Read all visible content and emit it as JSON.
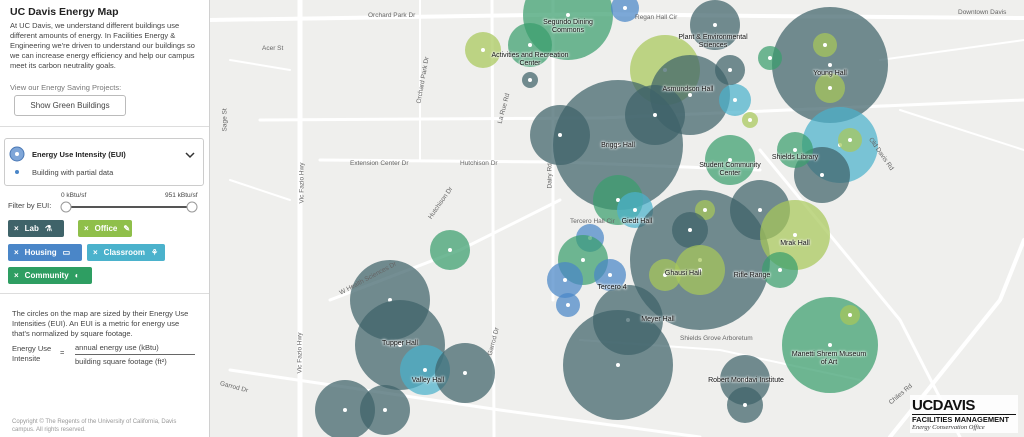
{
  "sidebar": {
    "title": "UC Davis Energy Map",
    "intro": "At UC Davis, we understand different buildings use different amounts of energy. In Facilities Energy & Engineering we're driven to understand our buildings so we can increase energy efficiency and help our campus meet its carbon neutrality goals.",
    "projects_label": "View our Energy Saving Projects:",
    "green_button": "Show Green Buildings",
    "legend": {
      "title": "Energy Use Intensity (EUI)",
      "partial": "Building with partial data"
    },
    "filter": {
      "label": "Filter by EUI:",
      "min": "0 kBtu/sf",
      "max": "951 kBtu/sf",
      "chips": [
        "Lab",
        "Office",
        "Housing",
        "Classroom",
        "Community"
      ]
    },
    "explanation": "The circles on the map are sized by their Energy Use Intensities (EUI). An EUI is a metric for energy use that's normalized by square footage.",
    "formula": {
      "term": "Energy Use Intensite",
      "equals": "=",
      "numerator": "annual energy use (kBtu)",
      "denominator": "building square footage (ft²)"
    },
    "copyright": "Copyright © The Regents of the University of California, Davis campus. All rights reserved."
  },
  "map": {
    "buildings": [
      "Segundo Dining Commons",
      "Plant & Environmental Sciences",
      "Activities and Recreation Center",
      "Young Hall",
      "Asmundson Hall",
      "Briggs Hall",
      "Student Community Center",
      "Shields Library",
      "Giedt Hall",
      "Mrak Hall",
      "Ghausi Hall",
      "Rifle Range",
      "Tercero 4",
      "Meyer Hall",
      "Tupper Hall",
      "Valley Hall",
      "Robert Mondavi Institute",
      "Manetti Shrem Museum of Art"
    ],
    "streets": [
      "Orchard Park Dr",
      "Regan Hall Cir",
      "Downtown Davis",
      "Acer St",
      "Vic Fazio Hwy",
      "La Rue Rd",
      "Orchard Park Dr",
      "Extension Center Dr",
      "Hutchison Dr",
      "Dairy Rd",
      "W Health Sciences Dr",
      "Garrod Dr",
      "Old Davis Rd",
      "Shields Grove Arboretum",
      "Chiles Rd",
      "Sage St",
      "Hutchison Dr",
      "Tercero Hall Cir",
      "Vic Fazio Hwy",
      "Garrod Dr"
    ]
  },
  "branding": {
    "name": "UCDAVIS",
    "unit": "FACILITIES MANAGEMENT",
    "office": "Energy Conservation Office"
  }
}
